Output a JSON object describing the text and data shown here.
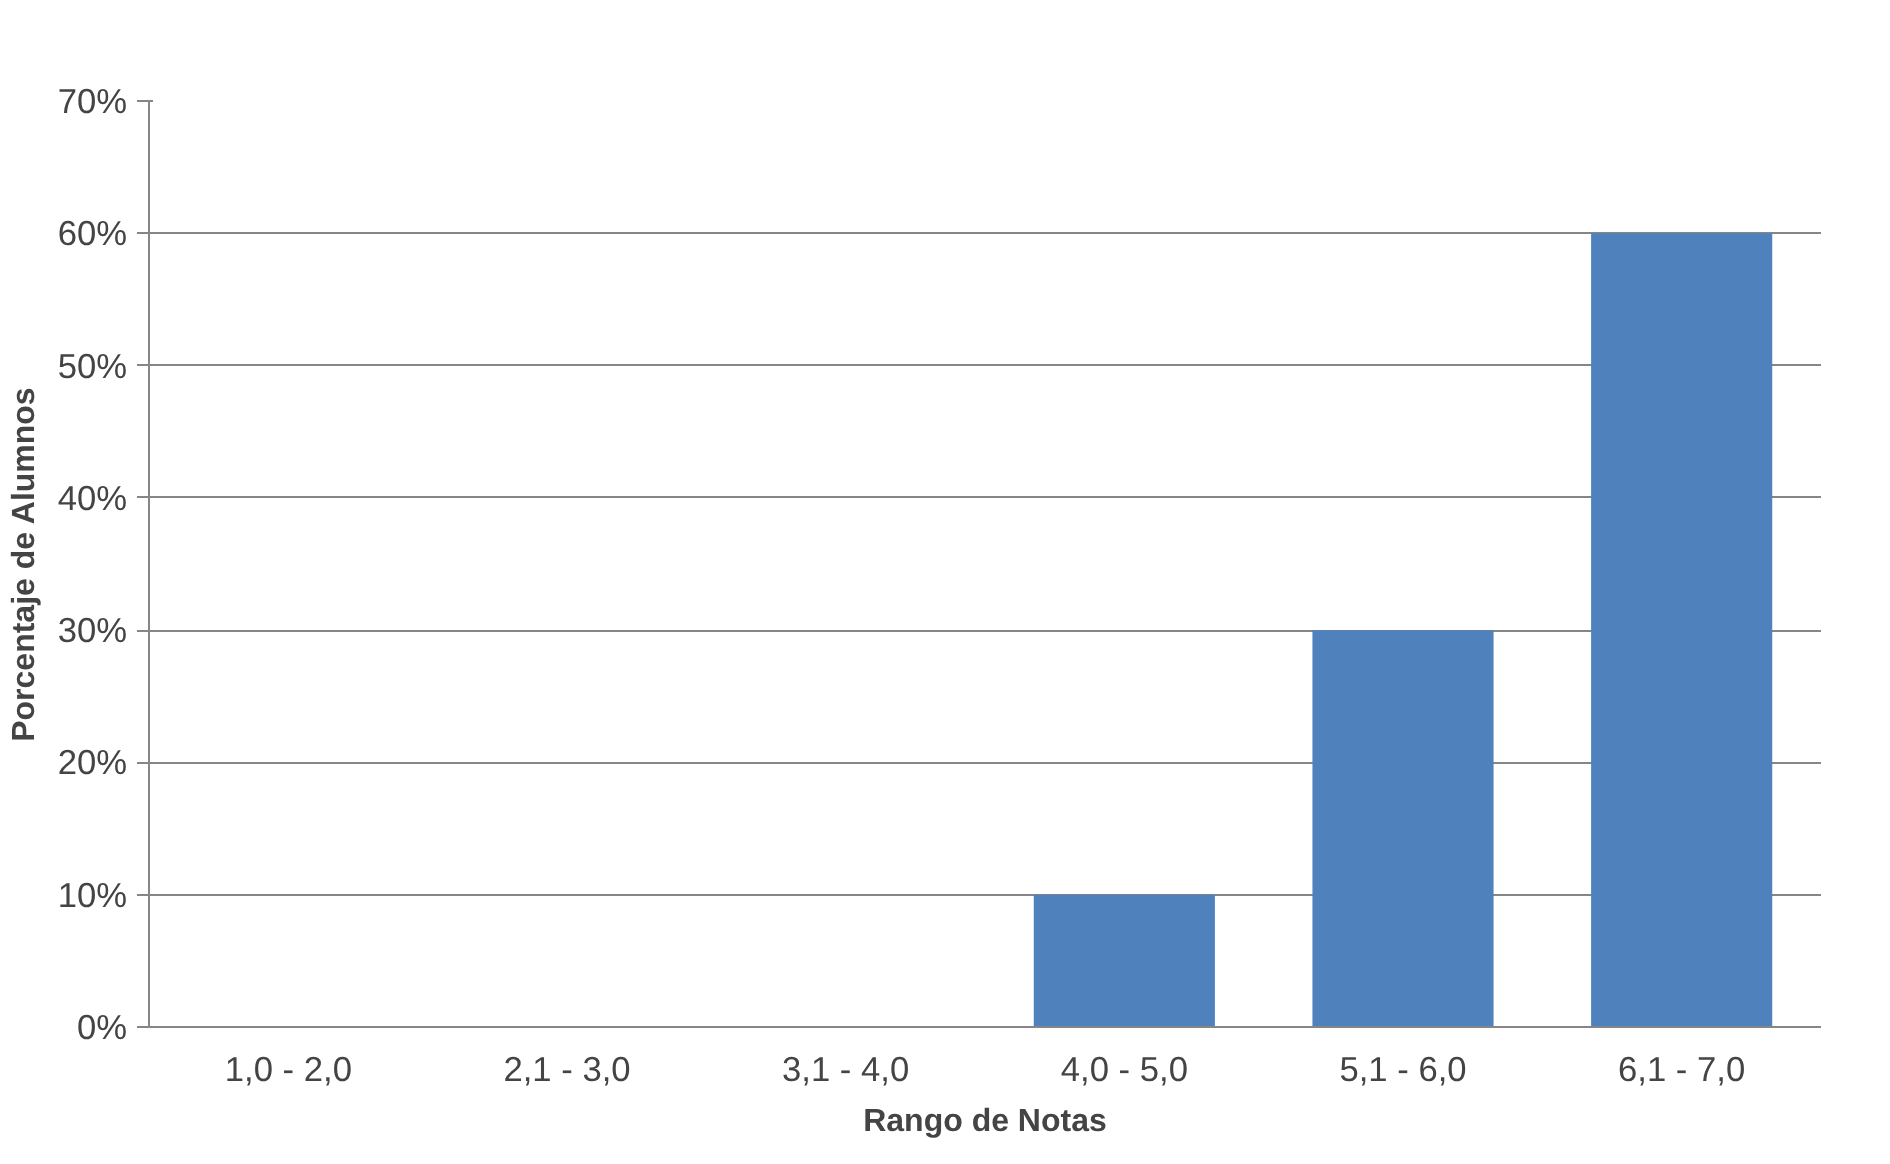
{
  "chart_data": {
    "type": "bar",
    "xlabel": "Rango de Notas",
    "ylabel": "Porcentaje de Alumnos",
    "categories": [
      "1,0 - 2,0",
      "2,1 - 3,0",
      "3,1 - 4,0",
      "4,0 - 5,0",
      "5,1 - 6,0",
      "6,1 - 7,0"
    ],
    "values": [
      0,
      0,
      0,
      10,
      30,
      60
    ],
    "color": "#4f81bd",
    "ylim": [
      0,
      70
    ],
    "yticks": [
      {
        "value": 0,
        "label": "0%"
      },
      {
        "value": 10,
        "label": "10%"
      },
      {
        "value": 20,
        "label": "20%"
      },
      {
        "value": 30,
        "label": "30%"
      },
      {
        "value": 40,
        "label": "40%"
      },
      {
        "value": 50,
        "label": "50%"
      },
      {
        "value": 60,
        "label": "60%"
      },
      {
        "value": 70,
        "label": "70%"
      }
    ],
    "grid": "y"
  }
}
